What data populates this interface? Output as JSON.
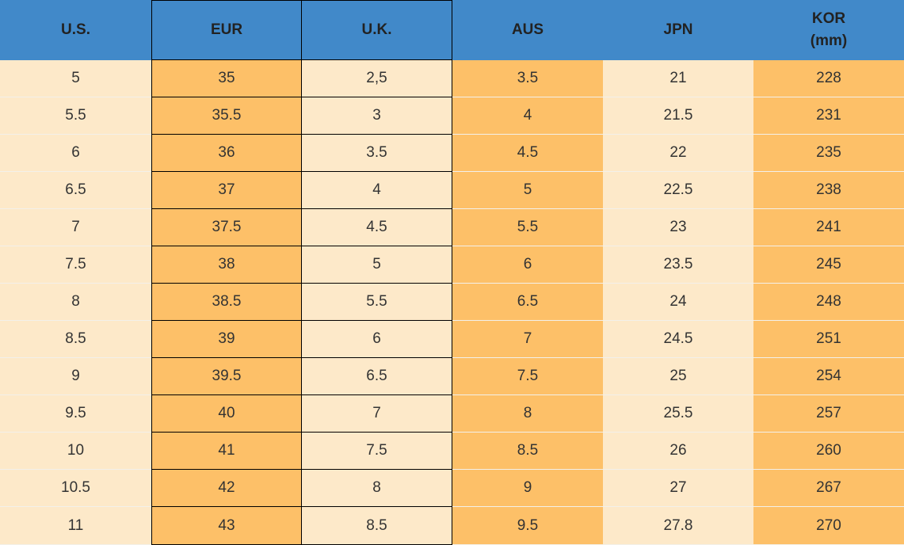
{
  "table": {
    "header": [
      "U.S.",
      "EUR",
      "U.K.",
      "AUS",
      "JPN",
      "KOR\n(mm)"
    ],
    "rows": [
      [
        "5",
        "35",
        "2,5",
        "3.5",
        "21",
        "228"
      ],
      [
        "5.5",
        "35.5",
        "3",
        "4",
        "21.5",
        "231"
      ],
      [
        "6",
        "36",
        "3.5",
        "4.5",
        "22",
        "235"
      ],
      [
        "6.5",
        "37",
        "4",
        "5",
        "22.5",
        "238"
      ],
      [
        "7",
        "37.5",
        "4.5",
        "5.5",
        "23",
        "241"
      ],
      [
        "7.5",
        "38",
        "5",
        "6",
        "23.5",
        "245"
      ],
      [
        "8",
        "38.5",
        "5.5",
        "6.5",
        "24",
        "248"
      ],
      [
        "8.5",
        "39",
        "6",
        "7",
        "24.5",
        "251"
      ],
      [
        "9",
        "39.5",
        "6.5",
        "7.5",
        "25",
        "254"
      ],
      [
        "9.5",
        "40",
        "7",
        "8",
        "25.5",
        "257"
      ],
      [
        "10",
        "41",
        "7.5",
        "8.5",
        "26",
        "260"
      ],
      [
        "10.5",
        "42",
        "8",
        "9",
        "27",
        "267"
      ],
      [
        "11",
        "43",
        "8.5",
        "9.5",
        "27.8",
        "270"
      ]
    ]
  }
}
